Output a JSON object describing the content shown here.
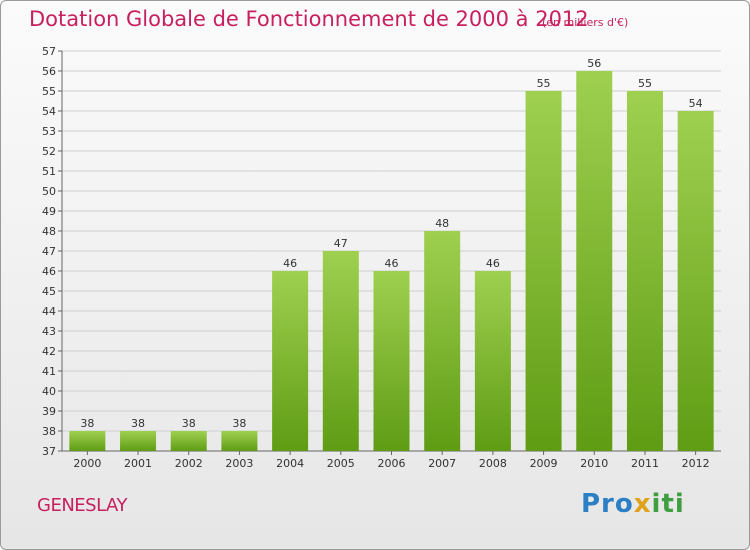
{
  "header": {
    "title": "Dotation Globale de Fonctionnement de 2000 à 2012",
    "subtitle": "(en milliers d'€)"
  },
  "footer": {
    "commune": "GENESLAY",
    "brand": "Proxiti",
    "brand_parts": [
      "Pro",
      "x",
      "iti"
    ]
  },
  "colors": {
    "accent": "#c8205e",
    "bar_light": "#9fd050",
    "bar_dark": "#5f9c14",
    "grid": "#cfcfcf"
  },
  "chart_data": {
    "type": "bar",
    "title": "Dotation Globale de Fonctionnement de 2000 à 2012",
    "subtitle": "(en milliers d'€)",
    "xlabel": "",
    "ylabel": "",
    "categories": [
      "2000",
      "2001",
      "2002",
      "2003",
      "2004",
      "2005",
      "2006",
      "2007",
      "2008",
      "2009",
      "2010",
      "2011",
      "2012"
    ],
    "values": [
      38,
      38,
      38,
      38,
      46,
      47,
      46,
      48,
      46,
      55,
      56,
      55,
      54
    ],
    "ylim": [
      37,
      57
    ],
    "yticks": [
      37,
      38,
      39,
      40,
      41,
      42,
      43,
      44,
      45,
      46,
      47,
      48,
      49,
      50,
      51,
      52,
      53,
      54,
      55,
      56,
      57
    ],
    "grid": true,
    "data_labels": true
  }
}
